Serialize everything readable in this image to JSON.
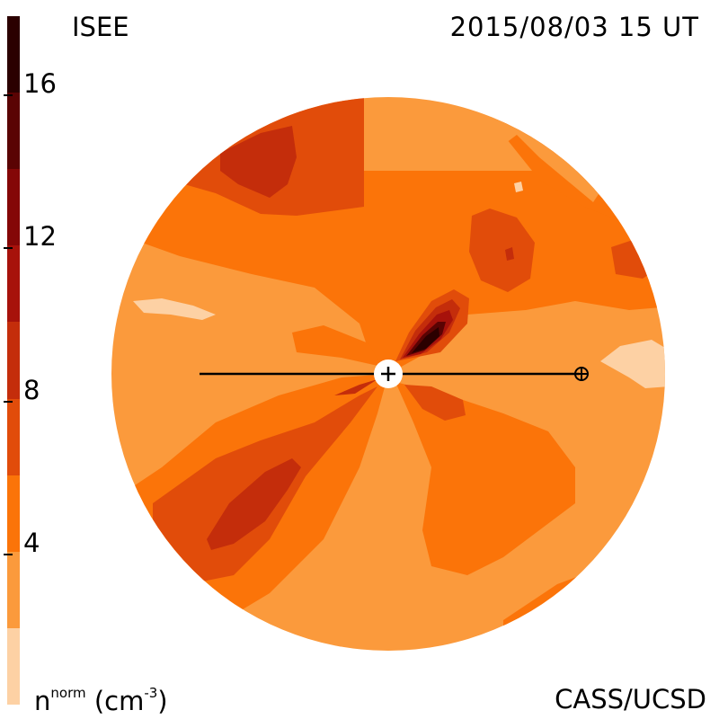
{
  "header": {
    "source": "ISEE",
    "datetime": "2015/08/03 15 UT"
  },
  "footer": {
    "credit": "CASS/UCSD",
    "quantity": "n",
    "quantity_sup": "norm",
    "unit_open": "(cm",
    "unit_sup": "-3",
    "unit_close": ")"
  },
  "colorbar": {
    "min": 0,
    "max": 18,
    "ticks": [
      {
        "value": 4,
        "label": "4"
      },
      {
        "value": 8,
        "label": "8"
      },
      {
        "value": 12,
        "label": "12"
      },
      {
        "value": 16,
        "label": "16"
      }
    ],
    "levels": [
      {
        "from": 0,
        "to": 2,
        "color": "#fdd1a4"
      },
      {
        "from": 2,
        "to": 4,
        "color": "#fb9a3c"
      },
      {
        "from": 4,
        "to": 6,
        "color": "#fb7409"
      },
      {
        "from": 6,
        "to": 8,
        "color": "#e14c0a"
      },
      {
        "from": 8,
        "to": 10,
        "color": "#c42d0b"
      },
      {
        "from": 10,
        "to": 12,
        "color": "#a7120b"
      },
      {
        "from": 12,
        "to": 14,
        "color": "#840707"
      },
      {
        "from": 14,
        "to": 16,
        "color": "#5a0303"
      },
      {
        "from": 16,
        "to": 18,
        "color": "#2b0000"
      }
    ]
  },
  "map": {
    "markers": [
      "sun-marker",
      "earth-marker"
    ],
    "colors": {
      "level1": "#fdd1a4",
      "level2": "#fb9a3c",
      "level3": "#fb7409",
      "level4": "#e14c0a",
      "level5": "#c42d0b",
      "level6": "#a7120b",
      "level8": "#5a0303",
      "level9": "#2b0000"
    }
  }
}
